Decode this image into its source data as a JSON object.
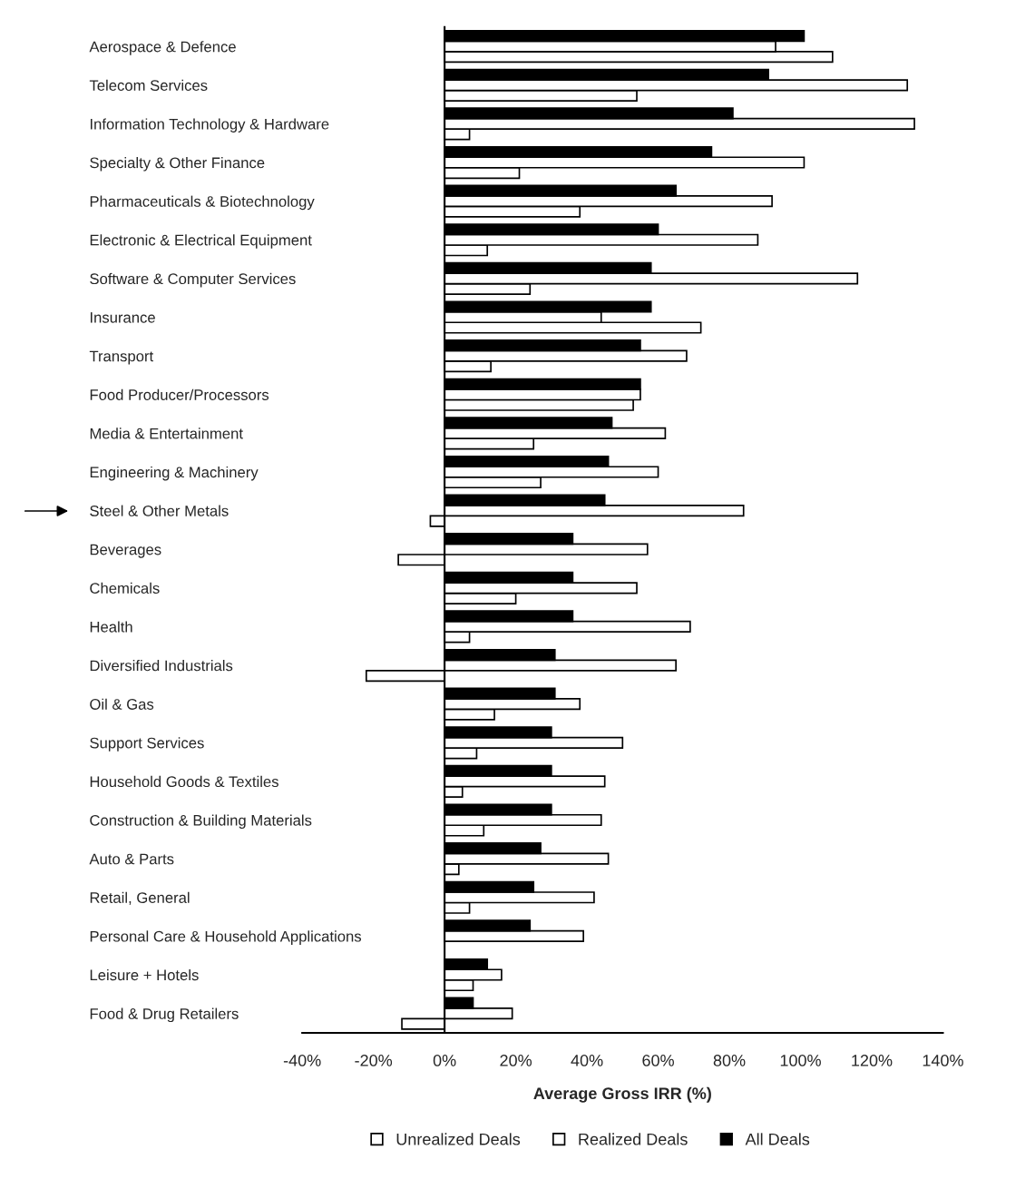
{
  "chart_data": {
    "type": "bar",
    "orientation": "horizontal",
    "xlabel": "Average Gross IRR (%)",
    "categories": [
      "Aerospace & Defence",
      "Telecom Services",
      "Information Technology & Hardware",
      "Specialty & Other Finance",
      "Pharmaceuticals & Biotechnology",
      "Electronic & Electrical Equipment",
      "Software & Computer Services",
      "Insurance",
      "Transport",
      "Food Producer/Processors",
      "Media & Entertainment",
      "Engineering & Machinery",
      "Steel & Other Metals",
      "Beverages",
      "Chemicals",
      "Health",
      "Diversified Industrials",
      "Oil & Gas",
      "Support Services",
      "Household Goods & Textiles",
      "Construction & Building Materials",
      "Auto & Parts",
      "Retail, General",
      "Personal Care & Household Applications",
      "Leisure + Hotels",
      "Food & Drug Retailers"
    ],
    "series": [
      {
        "name": "Unrealized Deals",
        "color": "#ffffff",
        "values": [
          109,
          54,
          7,
          21,
          38,
          12,
          24,
          72,
          13,
          53,
          25,
          27,
          -4,
          -13,
          20,
          7,
          -22,
          14,
          9,
          5,
          11,
          4,
          7,
          null,
          8,
          -12
        ]
      },
      {
        "name": "Realized Deals",
        "color": "#ffffff",
        "values": [
          93,
          130,
          132,
          101,
          92,
          88,
          116,
          44,
          68,
          55,
          62,
          60,
          84,
          57,
          54,
          69,
          65,
          38,
          50,
          45,
          44,
          46,
          42,
          39,
          16,
          19
        ]
      },
      {
        "name": "All Deals",
        "color": "#000000",
        "values": [
          101,
          91,
          81,
          75,
          65,
          60,
          58,
          58,
          55,
          55,
          47,
          46,
          45,
          36,
          36,
          36,
          31,
          31,
          30,
          30,
          30,
          27,
          25,
          24,
          12,
          8
        ]
      }
    ],
    "xlim": [
      -40,
      140
    ],
    "xticks": [
      {
        "value": -40,
        "label": "-40%"
      },
      {
        "value": -20,
        "label": "-20%"
      },
      {
        "value": 0,
        "label": "0%"
      },
      {
        "value": 20,
        "label": "20%"
      },
      {
        "value": 40,
        "label": "40%"
      },
      {
        "value": 60,
        "label": "60%"
      },
      {
        "value": 80,
        "label": "80%"
      },
      {
        "value": 100,
        "label": "100%"
      },
      {
        "value": 120,
        "label": "120%"
      },
      {
        "value": 140,
        "label": "140%"
      }
    ],
    "legend": "bottom"
  }
}
